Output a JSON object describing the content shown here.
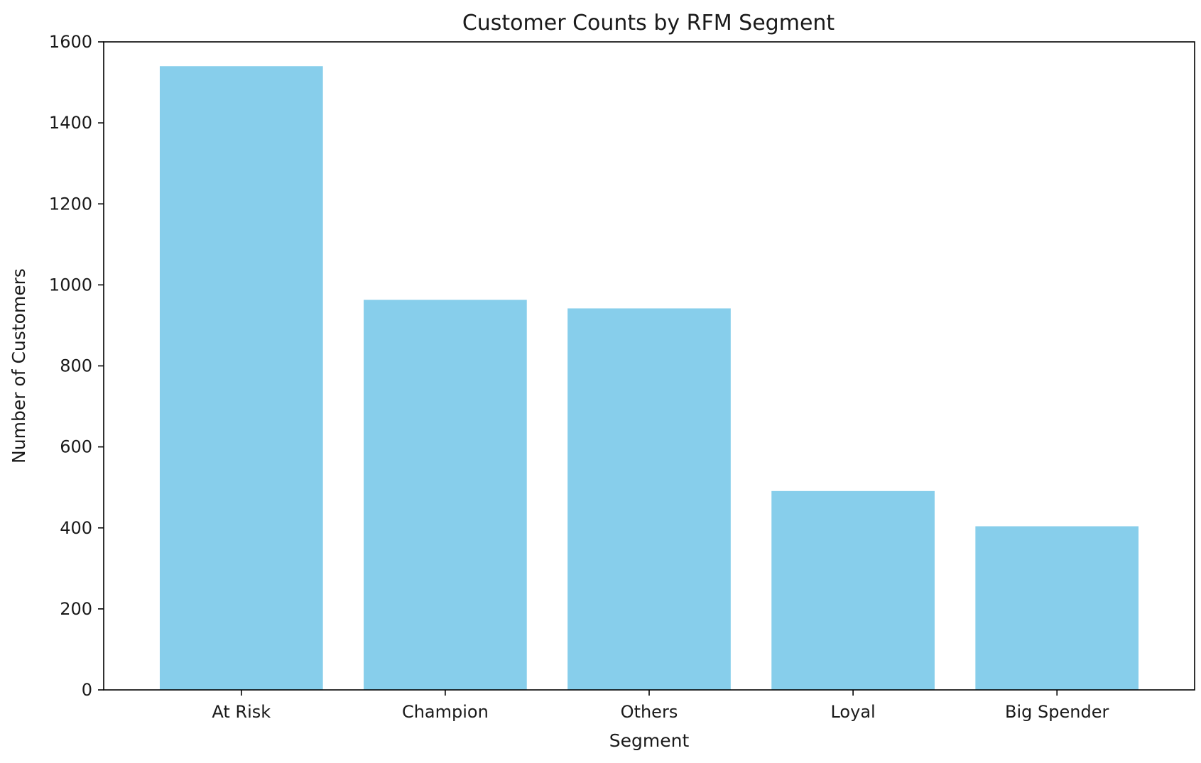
{
  "chart_data": {
    "type": "bar",
    "title": "Customer Counts by RFM Segment",
    "xlabel": "Segment",
    "ylabel": "Number of Customers",
    "categories": [
      "At Risk",
      "Champion",
      "Others",
      "Loyal",
      "Big Spender"
    ],
    "values": [
      1540,
      963,
      942,
      491,
      404
    ],
    "ylim": [
      0,
      1600
    ],
    "yticks": [
      0,
      200,
      400,
      600,
      800,
      1000,
      1200,
      1400,
      1600
    ],
    "bar_color": "#87ceeb",
    "grid": false,
    "legend": false
  }
}
